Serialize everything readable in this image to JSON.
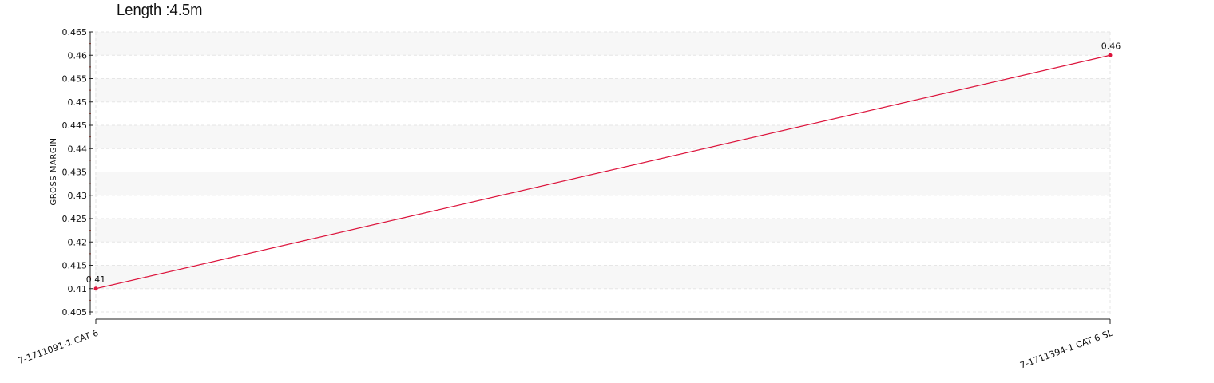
{
  "chart_data": {
    "type": "line",
    "title": "Length :4.5m",
    "xlabel": "",
    "ylabel": "GROSS MARGIN",
    "categories": [
      "7-1711091-1 CAT 6",
      "7-1711394-1 CAT 6 SL"
    ],
    "series": [
      {
        "values": [
          0.41,
          0.46
        ],
        "color": "#dc143c"
      }
    ],
    "data_labels": [
      "0.41",
      "0.46"
    ],
    "ylim": [
      0.405,
      0.465
    ],
    "yticks": [
      "0.405",
      "0.41",
      "0.415",
      "0.42",
      "0.425",
      "0.43",
      "0.435",
      "0.44",
      "0.445",
      "0.45",
      "0.455",
      "0.46",
      "0.465"
    ],
    "grid": true,
    "legend": "none"
  }
}
